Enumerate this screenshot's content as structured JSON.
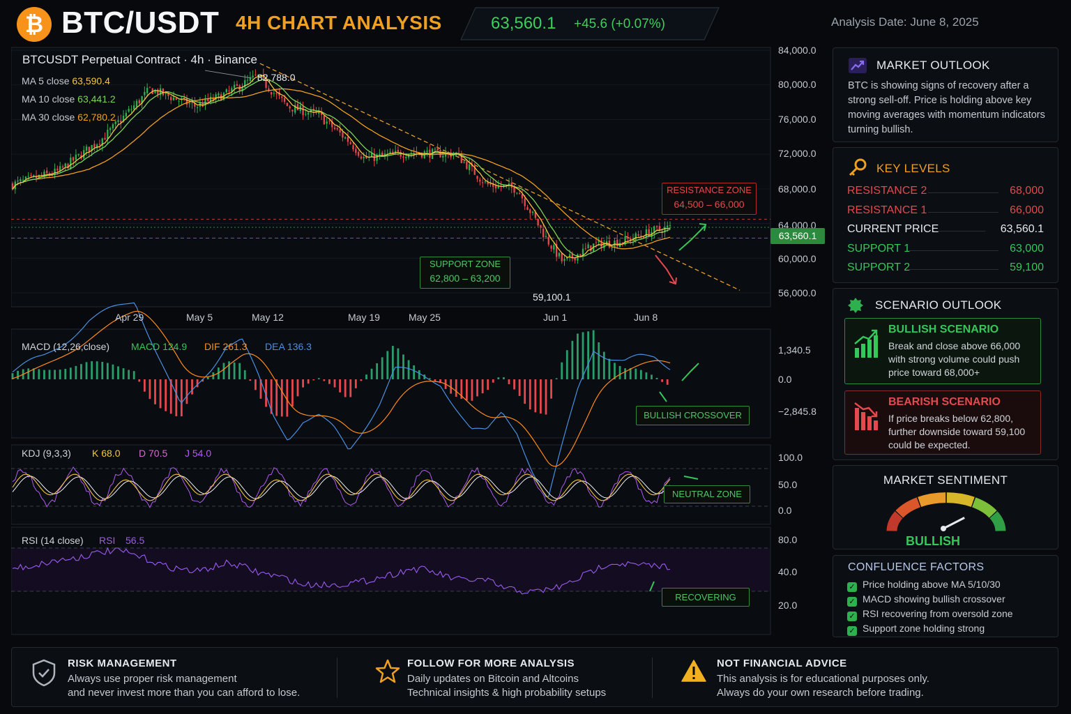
{
  "header": {
    "logo_symbol": "₿",
    "pair": "BTC/USDT",
    "subtitle": "4H CHART ANALYSIS",
    "price": "63,560.1",
    "change": "+45.6 (+0.07%)",
    "analysis_date": "Analysis Date: June 8, 2025"
  },
  "main_chart": {
    "title": "BTCUSDT Perpetual Contract · 4h · Binance",
    "ma5_label": "MA 5 close",
    "ma5_value": "63,590.4",
    "ma10_label": "MA 10 close",
    "ma10_value": "63,441.2",
    "ma30_label": "MA 30 close",
    "ma30_value": "62,780.2",
    "high_label": "82,788.0",
    "low_label": "59,100.1",
    "current_price_tag": "63,560.1",
    "y_ticks": [
      "84,000.0",
      "80,000.0",
      "76,000.0",
      "72,000.0",
      "68,000.0",
      "64,000.0",
      "60,000.0",
      "56,000.0"
    ],
    "x_ticks": [
      "Apr 29",
      "May 5",
      "May 12",
      "May 19",
      "May 25",
      "Jun 1",
      "Jun 8"
    ],
    "resistance_zone_title": "RESISTANCE ZONE",
    "resistance_zone_range": "64,500 – 66,000",
    "support_zone_title": "SUPPORT ZONE",
    "support_zone_range": "62,800 – 63,200"
  },
  "macd": {
    "label": "MACD (12,26,close)",
    "macd_label": "MACD 124.9",
    "dif_label": "DIF 261.3",
    "dea_label": "DEA 136.3",
    "y_ticks": [
      "1,340.5",
      "0.0",
      "−2,845.8"
    ],
    "annotation": "BULLISH CROSSOVER"
  },
  "kdj": {
    "label": "KDJ (9,3,3)",
    "k_label": "K 68.0",
    "d_label": "D 70.5",
    "j_label": "J 54.0",
    "y_ticks": [
      "100.0",
      "50.0",
      "0.0"
    ],
    "annotation": "NEUTRAL ZONE"
  },
  "rsi": {
    "label": "RSI (14 close)",
    "rsi_label": "RSI",
    "rsi_value": "56.5",
    "y_ticks": [
      "80.0",
      "40.0",
      "20.0"
    ],
    "annotation": "RECOVERING"
  },
  "chart_data": {
    "type": "candlestick",
    "x_ticks": [
      "Apr 29",
      "May 5",
      "May 12",
      "May 19",
      "May 25",
      "Jun 1",
      "Jun 8"
    ],
    "ylim": [
      56000,
      84000
    ],
    "y_ticks": [
      84000,
      80000,
      76000,
      72000,
      68000,
      64000,
      60000,
      56000
    ],
    "price_path": [
      {
        "x": "Apr 26",
        "y": 68500
      },
      {
        "x": "Apr 29",
        "y": 70000
      },
      {
        "x": "May 2",
        "y": 74000
      },
      {
        "x": "May 5",
        "y": 79500
      },
      {
        "x": "May 8",
        "y": 77500
      },
      {
        "x": "May 10",
        "y": 79000
      },
      {
        "x": "May 12",
        "y": 81000
      },
      {
        "x": "May 14",
        "y": 77500
      },
      {
        "x": "May 16",
        "y": 76500
      },
      {
        "x": "May 18",
        "y": 73500
      },
      {
        "x": "May 19",
        "y": 71500
      },
      {
        "x": "May 22",
        "y": 72200
      },
      {
        "x": "May 25",
        "y": 72000
      },
      {
        "x": "May 27",
        "y": 68500
      },
      {
        "x": "May 29",
        "y": 68000
      },
      {
        "x": "May 31",
        "y": 62000
      },
      {
        "x": "Jun 1",
        "y": 59500
      },
      {
        "x": "Jun 3",
        "y": 61500
      },
      {
        "x": "Jun 5",
        "y": 62000
      },
      {
        "x": "Jun 7",
        "y": 63200
      },
      {
        "x": "Jun 8",
        "y": 63560.1
      }
    ],
    "high": 82788.0,
    "low": 59100.1,
    "current": 63560.1,
    "resistance_zone": [
      64500,
      66000
    ],
    "support_zone": [
      62800,
      63200
    ],
    "moving_averages": {
      "MA 5": 63590.4,
      "MA 10": 63441.2,
      "MA 30": 62780.2
    },
    "macd": {
      "MACD": 124.9,
      "DIF": 261.3,
      "DEA": 136.3,
      "ylim": [
        -2845.8,
        1340.5
      ]
    },
    "kdj": {
      "K": 68.0,
      "D": 70.5,
      "J": 54.0,
      "ylim": [
        0,
        100
      ]
    },
    "rsi": {
      "RSI": 56.5,
      "y_ticks": [
        80,
        40,
        20
      ]
    }
  },
  "sidebar": {
    "outlook": {
      "title": "MARKET OUTLOOK",
      "text": "BTC is showing signs of recovery after a strong sell-off. Price is holding above key moving averages with momentum indicators turning bullish."
    },
    "key_levels": {
      "title": "KEY LEVELS",
      "rows": [
        {
          "name": "RESISTANCE 2",
          "value": "68,000",
          "color": "#e5484d"
        },
        {
          "name": "RESISTANCE 1",
          "value": "66,000",
          "color": "#e5484d"
        },
        {
          "name": "CURRENT PRICE",
          "value": "63,560.1",
          "color": "#e6e9ed"
        },
        {
          "name": "SUPPORT 1",
          "value": "63,000",
          "color": "#34c759"
        },
        {
          "name": "SUPPORT 2",
          "value": "59,100",
          "color": "#34c759"
        }
      ]
    },
    "scenario": {
      "title": "SCENARIO OUTLOOK",
      "bullish_title": "BULLISH SCENARIO",
      "bullish_text": "Break and close above 66,000 with strong volume could push price toward 68,000+",
      "bearish_title": "BEARISH SCENARIO",
      "bearish_text": "If price breaks below 62,800, further downside toward 59,100 could be expected."
    },
    "sentiment": {
      "title": "MARKET SENTIMENT",
      "value": "BULLISH",
      "gauge_level": 0.78
    },
    "confluence": {
      "title": "CONFLUENCE FACTORS",
      "items": [
        "Price holding above MA 5/10/30",
        "MACD showing bullish crossover",
        "RSI recovering from oversold zone",
        "Support zone holding strong"
      ]
    }
  },
  "footer": {
    "risk_title": "RISK MANAGEMENT",
    "risk_line1": "Always use proper risk management",
    "risk_line2": "and never invest more than you can afford to lose.",
    "follow_title": "FOLLOW FOR MORE ANALYSIS",
    "follow_line1": "Daily updates on Bitcoin and Altcoins",
    "follow_line2": "Technical insights & high probability setups",
    "advice_title": "NOT FINANCIAL ADVICE",
    "advice_line1": "This analysis is for educational purposes only.",
    "advice_line2": "Always do your own research before trading."
  },
  "colors": {
    "accent": "#f0a020",
    "bullish": "#34c759",
    "bearish": "#e5484d",
    "macd_line": "#4a90e2",
    "signal_line": "#ff8c1a",
    "kdj_k": "#f5c542",
    "kdj_d": "#f0f0f0",
    "kdj_j": "#b05cf0",
    "rsi": "#9b5cf0"
  }
}
